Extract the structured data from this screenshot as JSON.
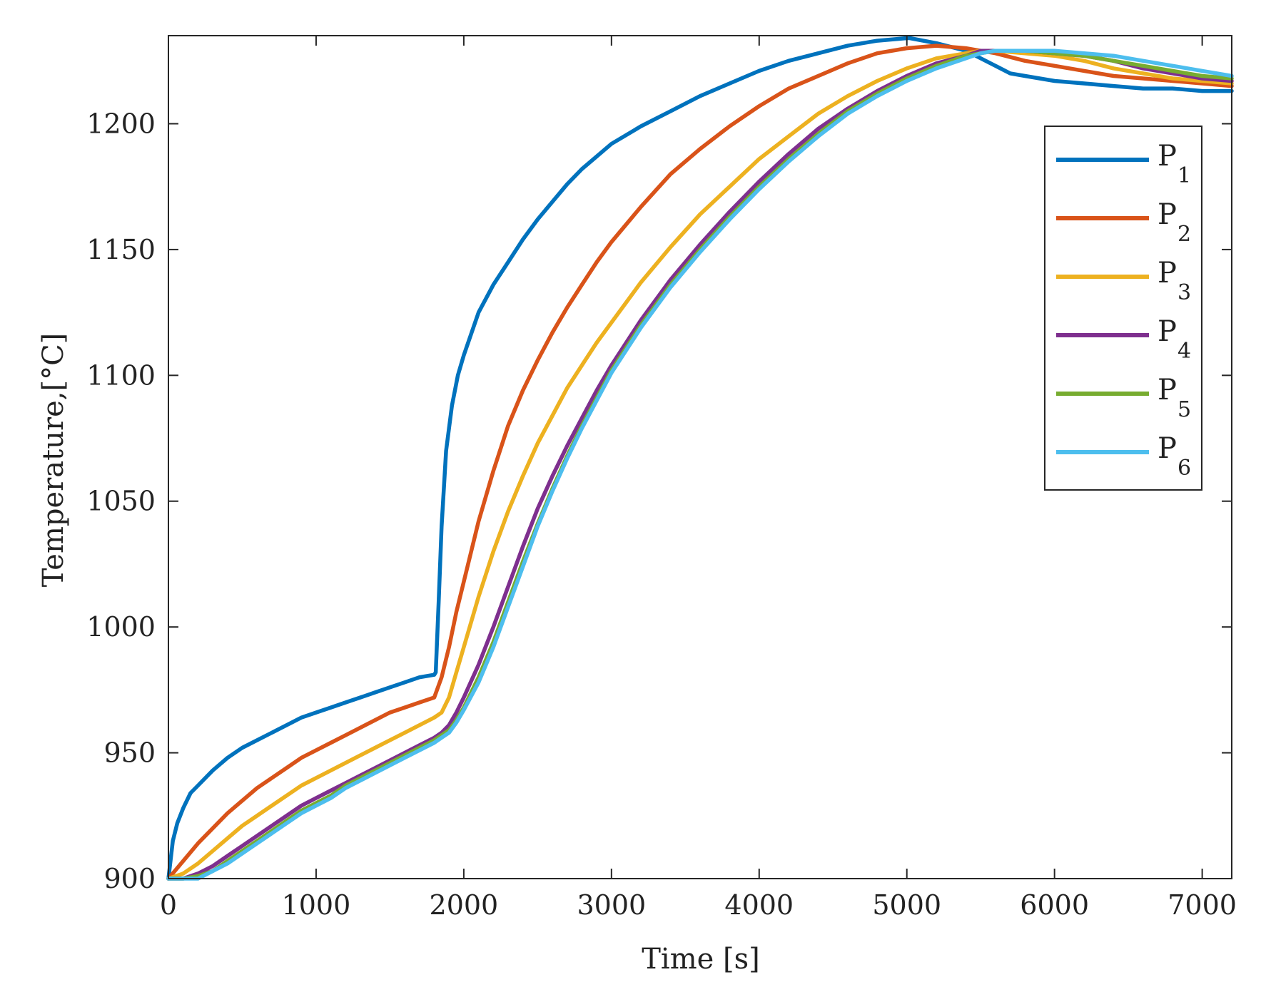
{
  "chart_data": {
    "type": "line",
    "xlabel": "Time [s]",
    "ylabel": "Temperature,[°C]",
    "xlim": [
      0,
      7200
    ],
    "ylim": [
      900,
      1235
    ],
    "xticks": [
      0,
      1000,
      2000,
      3000,
      4000,
      5000,
      6000,
      7000
    ],
    "yticks": [
      900,
      950,
      1000,
      1050,
      1100,
      1150,
      1200
    ],
    "xtick_labels": [
      "0",
      "1000",
      "2000",
      "3000",
      "4000",
      "5000",
      "6000",
      "7000"
    ],
    "ytick_labels": [
      "900",
      "950",
      "1000",
      "1050",
      "1100",
      "1150",
      "1200"
    ],
    "grid": false,
    "legend_position": "top-right",
    "series": [
      {
        "name": "P",
        "subscript": "1",
        "color": "#0072BD",
        "x": [
          0,
          30,
          60,
          100,
          150,
          200,
          300,
          400,
          500,
          600,
          700,
          800,
          900,
          1000,
          1100,
          1200,
          1300,
          1400,
          1500,
          1600,
          1700,
          1800,
          1810,
          1830,
          1850,
          1880,
          1920,
          1960,
          2000,
          2100,
          2200,
          2300,
          2400,
          2500,
          2600,
          2700,
          2800,
          2900,
          3000,
          3200,
          3400,
          3600,
          3800,
          4000,
          4200,
          4400,
          4600,
          4800,
          5000,
          5020,
          5200,
          5400,
          5600,
          5700,
          5800,
          6000,
          6200,
          6400,
          6600,
          6800,
          7000,
          7200
        ],
        "y": [
          900,
          915,
          922,
          928,
          934,
          937,
          943,
          948,
          952,
          955,
          958,
          961,
          964,
          966,
          968,
          970,
          972,
          974,
          976,
          978,
          980,
          981,
          982,
          1010,
          1040,
          1070,
          1088,
          1100,
          1108,
          1125,
          1136,
          1145,
          1154,
          1162,
          1169,
          1176,
          1182,
          1187,
          1192,
          1199,
          1205,
          1211,
          1216,
          1221,
          1225,
          1228,
          1231,
          1233,
          1234,
          1234,
          1232,
          1229,
          1223,
          1220,
          1219,
          1217,
          1216,
          1215,
          1214,
          1214,
          1213,
          1213
        ]
      },
      {
        "name": "P",
        "subscript": "2",
        "color": "#D95319",
        "x": [
          0,
          100,
          200,
          300,
          400,
          500,
          600,
          700,
          800,
          900,
          1000,
          1100,
          1200,
          1300,
          1400,
          1500,
          1600,
          1700,
          1800,
          1850,
          1900,
          1950,
          2000,
          2100,
          2200,
          2300,
          2400,
          2500,
          2600,
          2700,
          2800,
          2900,
          3000,
          3200,
          3400,
          3600,
          3800,
          4000,
          4200,
          4400,
          4600,
          4800,
          5000,
          5200,
          5400,
          5500,
          5600,
          5800,
          6000,
          6200,
          6400,
          6600,
          6800,
          7000,
          7200
        ],
        "y": [
          900,
          907,
          914,
          920,
          926,
          931,
          936,
          940,
          944,
          948,
          951,
          954,
          957,
          960,
          963,
          966,
          968,
          970,
          972,
          980,
          992,
          1006,
          1018,
          1042,
          1062,
          1080,
          1094,
          1106,
          1117,
          1127,
          1136,
          1145,
          1153,
          1167,
          1180,
          1190,
          1199,
          1207,
          1214,
          1219,
          1224,
          1228,
          1230,
          1231,
          1230,
          1229,
          1228,
          1225,
          1223,
          1221,
          1219,
          1218,
          1217,
          1216,
          1215
        ]
      },
      {
        "name": "P",
        "subscript": "3",
        "color": "#EDB120",
        "x": [
          0,
          100,
          200,
          300,
          400,
          500,
          600,
          700,
          800,
          900,
          1000,
          1100,
          1200,
          1300,
          1400,
          1500,
          1600,
          1700,
          1800,
          1850,
          1900,
          1950,
          2000,
          2100,
          2200,
          2300,
          2400,
          2500,
          2600,
          2700,
          2800,
          2900,
          3000,
          3200,
          3400,
          3600,
          3800,
          4000,
          4200,
          4400,
          4600,
          4800,
          5000,
          5200,
          5400,
          5500,
          5600,
          5800,
          6000,
          6200,
          6400,
          6600,
          6800,
          7000,
          7200
        ],
        "y": [
          900,
          902,
          906,
          911,
          916,
          921,
          925,
          929,
          933,
          937,
          940,
          943,
          946,
          949,
          952,
          955,
          958,
          961,
          964,
          966,
          972,
          982,
          992,
          1012,
          1030,
          1046,
          1060,
          1073,
          1084,
          1095,
          1104,
          1113,
          1121,
          1137,
          1151,
          1164,
          1175,
          1186,
          1195,
          1204,
          1211,
          1217,
          1222,
          1226,
          1228,
          1229,
          1229,
          1228,
          1227,
          1225,
          1222,
          1220,
          1218,
          1217,
          1216
        ]
      },
      {
        "name": "P",
        "subscript": "4",
        "color": "#7E2F8E",
        "x": [
          0,
          100,
          200,
          300,
          400,
          500,
          600,
          700,
          800,
          900,
          1000,
          1100,
          1200,
          1300,
          1400,
          1500,
          1600,
          1700,
          1800,
          1850,
          1900,
          1950,
          2000,
          2100,
          2200,
          2300,
          2400,
          2500,
          2600,
          2700,
          2800,
          2900,
          3000,
          3200,
          3400,
          3600,
          3800,
          4000,
          4200,
          4400,
          4600,
          4800,
          5000,
          5200,
          5400,
          5500,
          5600,
          5800,
          6000,
          6200,
          6400,
          6600,
          6800,
          7000,
          7200
        ],
        "y": [
          900,
          900,
          902,
          905,
          909,
          913,
          917,
          921,
          925,
          929,
          932,
          935,
          938,
          941,
          944,
          947,
          950,
          953,
          956,
          958,
          961,
          966,
          972,
          985,
          1000,
          1016,
          1032,
          1047,
          1060,
          1072,
          1083,
          1094,
          1104,
          1122,
          1138,
          1152,
          1165,
          1177,
          1188,
          1198,
          1206,
          1213,
          1219,
          1224,
          1227,
          1229,
          1229,
          1229,
          1228,
          1227,
          1225,
          1222,
          1220,
          1218,
          1217
        ]
      },
      {
        "name": "P",
        "subscript": "5",
        "color": "#77AC30",
        "x": [
          0,
          100,
          200,
          300,
          400,
          500,
          600,
          700,
          800,
          900,
          1000,
          1100,
          1200,
          1300,
          1400,
          1500,
          1600,
          1700,
          1800,
          1850,
          1900,
          1950,
          2000,
          2100,
          2200,
          2300,
          2400,
          2500,
          2600,
          2700,
          2800,
          2900,
          3000,
          3200,
          3400,
          3600,
          3800,
          4000,
          4200,
          4400,
          4600,
          4800,
          5000,
          5200,
          5400,
          5500,
          5600,
          5800,
          6000,
          6200,
          6400,
          6600,
          6800,
          7000,
          7200
        ],
        "y": [
          900,
          900,
          901,
          903,
          907,
          911,
          915,
          919,
          923,
          927,
          930,
          933,
          937,
          940,
          943,
          946,
          949,
          952,
          955,
          957,
          959,
          963,
          968,
          980,
          994,
          1010,
          1026,
          1041,
          1055,
          1068,
          1080,
          1091,
          1102,
          1120,
          1136,
          1150,
          1163,
          1175,
          1186,
          1196,
          1205,
          1212,
          1218,
          1223,
          1227,
          1228,
          1229,
          1229,
          1228,
          1227,
          1225,
          1223,
          1221,
          1219,
          1218
        ]
      },
      {
        "name": "P",
        "subscript": "6",
        "color": "#4DBEEE",
        "x": [
          0,
          100,
          200,
          300,
          400,
          500,
          600,
          700,
          800,
          900,
          1000,
          1100,
          1200,
          1300,
          1400,
          1500,
          1600,
          1700,
          1800,
          1850,
          1900,
          1950,
          2000,
          2100,
          2200,
          2300,
          2400,
          2500,
          2600,
          2700,
          2800,
          2900,
          3000,
          3200,
          3400,
          3600,
          3800,
          4000,
          4200,
          4400,
          4600,
          4800,
          5000,
          5200,
          5400,
          5500,
          5600,
          5800,
          6000,
          6200,
          6400,
          6600,
          6800,
          7000,
          7200
        ],
        "y": [
          900,
          900,
          900,
          903,
          906,
          910,
          914,
          918,
          922,
          926,
          929,
          932,
          936,
          939,
          942,
          945,
          948,
          951,
          954,
          956,
          958,
          962,
          967,
          978,
          992,
          1008,
          1024,
          1040,
          1054,
          1067,
          1079,
          1090,
          1101,
          1119,
          1135,
          1149,
          1162,
          1174,
          1185,
          1195,
          1204,
          1211,
          1217,
          1222,
          1226,
          1228,
          1229,
          1229,
          1229,
          1228,
          1227,
          1225,
          1223,
          1221,
          1219
        ]
      }
    ]
  }
}
